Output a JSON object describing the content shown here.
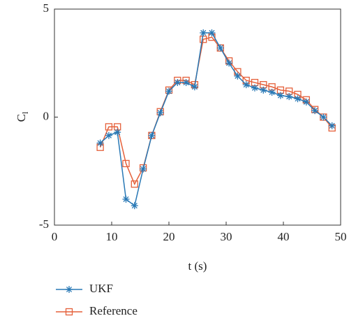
{
  "chart_data": {
    "type": "line",
    "xlabel": "t (s)",
    "ylabel": "C",
    "ylabel_sub": "l",
    "x": [
      8,
      9.5,
      11,
      12.5,
      14,
      15.5,
      17,
      18.5,
      20,
      21.5,
      23,
      24.5,
      26,
      27.5,
      29,
      30.5,
      32,
      33.5,
      35,
      36.5,
      38,
      39.5,
      41,
      42.5,
      44,
      45.5,
      47,
      48.5
    ],
    "series": [
      {
        "name": "UKF",
        "color": "#2878b5",
        "marker": "asterisk",
        "values": [
          -1.2,
          -0.85,
          -0.7,
          -3.8,
          -4.1,
          -2.4,
          -0.85,
          0.2,
          1.2,
          1.6,
          1.6,
          1.4,
          3.9,
          3.9,
          3.2,
          2.5,
          1.9,
          1.5,
          1.35,
          1.25,
          1.15,
          1.0,
          0.95,
          0.85,
          0.7,
          0.3,
          0.0,
          -0.4
        ]
      },
      {
        "name": "Reference",
        "color": "#e5603a",
        "marker": "square",
        "values": [
          -1.4,
          -0.45,
          -0.45,
          -2.15,
          -3.1,
          -2.35,
          -0.85,
          0.25,
          1.25,
          1.7,
          1.7,
          1.5,
          3.6,
          3.7,
          3.2,
          2.6,
          2.1,
          1.7,
          1.6,
          1.5,
          1.4,
          1.25,
          1.2,
          1.05,
          0.8,
          0.35,
          0.0,
          -0.5
        ]
      }
    ],
    "xlim": [
      0,
      50
    ],
    "xticks": [
      0,
      10,
      20,
      30,
      40,
      50
    ],
    "ylim": [
      -5,
      5
    ],
    "yticks": [
      -5,
      0,
      5
    ],
    "grid": false,
    "legend": "bottom-left"
  }
}
